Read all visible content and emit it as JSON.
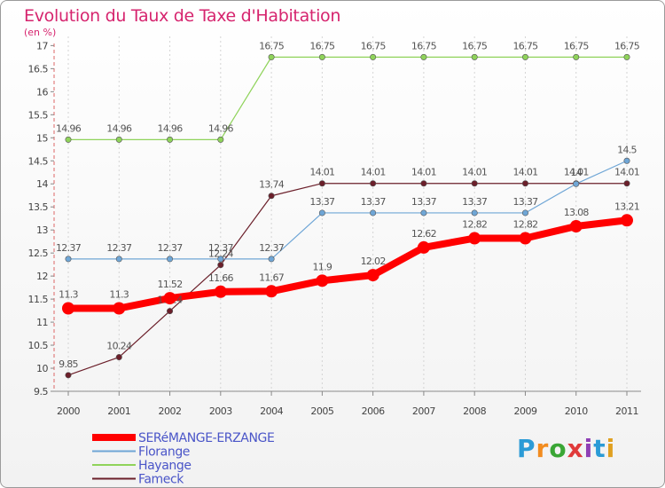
{
  "header": {
    "title": "Evolution du Taux de Taxe d'Habitation",
    "subtitle": "(en %)"
  },
  "logo": {
    "text": "Proxiti",
    "colors": [
      "#2b9bd6",
      "#f28c1f",
      "#3aa635",
      "#e03a3a",
      "#8f3fb5",
      "#2b9bd6",
      "#e0a020"
    ]
  },
  "chart_data": {
    "type": "line",
    "x": [
      "2000",
      "2001",
      "2002",
      "2003",
      "2004",
      "2005",
      "2006",
      "2007",
      "2008",
      "2009",
      "2010",
      "2011"
    ],
    "ylim": [
      9.5,
      17.2
    ],
    "yticks": [
      9.5,
      10,
      10.5,
      11,
      11.5,
      12,
      12.5,
      13,
      13.5,
      14,
      14.5,
      15,
      15.5,
      16,
      16.5,
      17
    ],
    "ytick_labels": [
      "9.5",
      "10",
      "10.5",
      "11",
      "11.5",
      "12",
      "12.5",
      "13",
      "13.5",
      "14",
      "14.5",
      "15",
      "15.5",
      "16",
      "16.5",
      "17"
    ],
    "grid": "vertical-dashed",
    "legend_position": "bottom-left",
    "series": [
      {
        "name": "Hayange",
        "color": "#8fd35a",
        "width": 1.2,
        "values": [
          14.96,
          14.96,
          14.96,
          14.96,
          16.75,
          16.75,
          16.75,
          16.75,
          16.75,
          16.75,
          16.75,
          16.75
        ],
        "labels": [
          "14.96",
          "14.96",
          "14.96",
          "14.96",
          "16.75",
          "16.75",
          "16.75",
          "16.75",
          "16.75",
          "16.75",
          "16.75",
          "16.75"
        ]
      },
      {
        "name": "Fameck",
        "color": "#6b1f2a",
        "width": 1.2,
        "values": [
          9.85,
          10.24,
          11.24,
          12.24,
          13.74,
          14.01,
          14.01,
          14.01,
          14.01,
          14.01,
          14.01,
          14.01
        ],
        "labels": [
          "9.85",
          "10.24",
          "11.24",
          "12.24",
          "13.74",
          "14.01",
          "14.01",
          "14.01",
          "14.01",
          "14.01",
          "14.01",
          "14.01"
        ]
      },
      {
        "name": "Florange",
        "color": "#6fa6d6",
        "width": 1.2,
        "values": [
          12.37,
          12.37,
          12.37,
          12.37,
          12.37,
          13.37,
          13.37,
          13.37,
          13.37,
          13.37,
          14.0,
          14.5
        ],
        "labels": [
          "12.37",
          "12.37",
          "12.37",
          "12.37",
          "12.37",
          "13.37",
          "13.37",
          "13.37",
          "13.37",
          "13.37",
          "14",
          "14.5"
        ]
      },
      {
        "name": "SERéMANGE-ERZANGE",
        "color": "#ff0000",
        "width": 8,
        "values": [
          11.3,
          11.3,
          11.52,
          11.66,
          11.67,
          11.9,
          12.02,
          12.62,
          12.82,
          12.82,
          13.08,
          13.21
        ],
        "labels": [
          "11.3",
          "11.3",
          "11.52",
          "11.66",
          "11.67",
          "11.9",
          "12.02",
          "12.62",
          "12.82",
          "12.82",
          "13.08",
          "13.21"
        ]
      }
    ],
    "legend": [
      {
        "name": "SERéMANGE-ERZANGE",
        "color": "#ff0000",
        "width": 8
      },
      {
        "name": "Florange",
        "color": "#6fa6d6",
        "width": 2
      },
      {
        "name": "Hayange",
        "color": "#8fd35a",
        "width": 2
      },
      {
        "name": "Fameck",
        "color": "#6b1f2a",
        "width": 2
      }
    ]
  }
}
